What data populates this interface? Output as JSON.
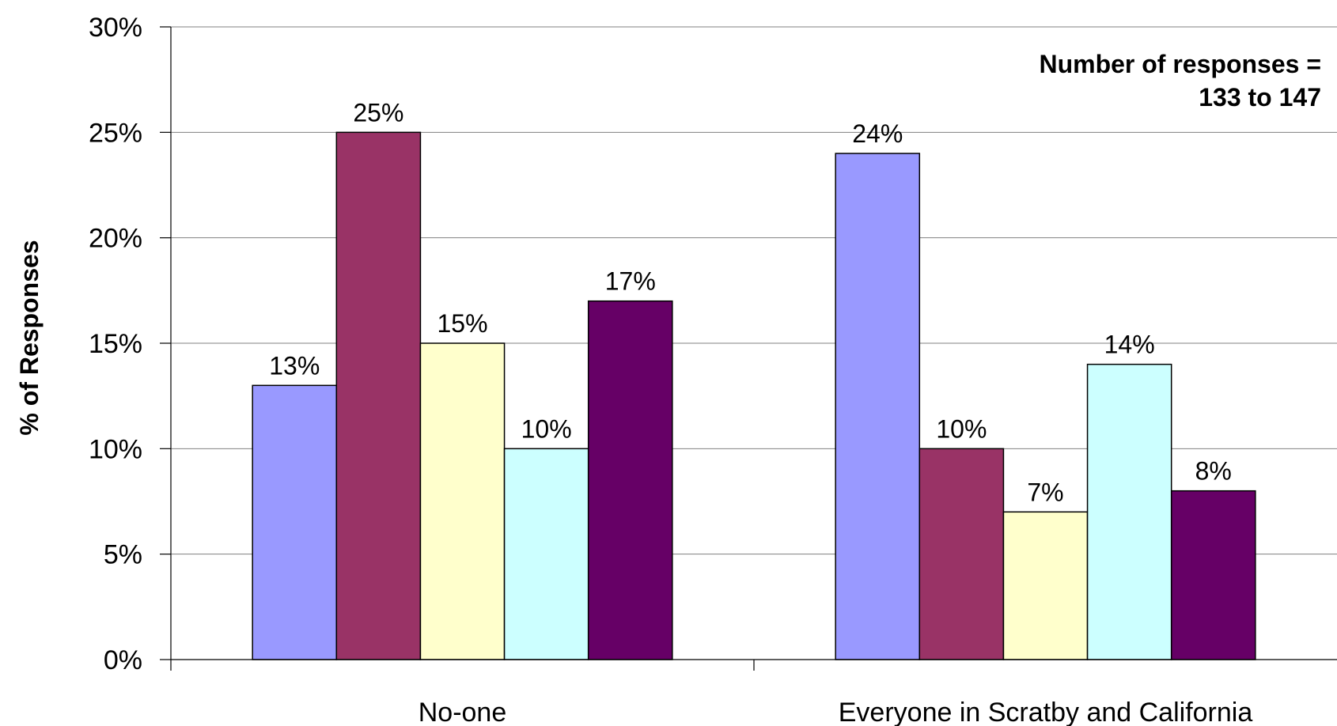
{
  "chart_data": {
    "type": "bar",
    "categories": [
      "No-one",
      "Everyone in Scratby and California"
    ],
    "series": [
      {
        "color": "#9999ff",
        "values": [
          13,
          24
        ],
        "labels": [
          "13%",
          "24%"
        ]
      },
      {
        "color": "#993366",
        "values": [
          25,
          10
        ],
        "labels": [
          "25%",
          "10%"
        ]
      },
      {
        "color": "#ffffcc",
        "values": [
          15,
          7
        ],
        "labels": [
          "15%",
          "7%"
        ]
      },
      {
        "color": "#ccffff",
        "values": [
          10,
          14
        ],
        "labels": [
          "10%",
          "14%"
        ]
      },
      {
        "color": "#660066",
        "values": [
          17,
          8
        ],
        "labels": [
          "17%",
          "8%"
        ]
      }
    ],
    "ylabel": "% of Responses",
    "ylim": [
      0,
      30
    ],
    "yticks": [
      "0%",
      "5%",
      "10%",
      "15%",
      "20%",
      "25%",
      "30%"
    ],
    "grid": true,
    "annotation": [
      "Number of responses =",
      "133 to 147"
    ]
  }
}
